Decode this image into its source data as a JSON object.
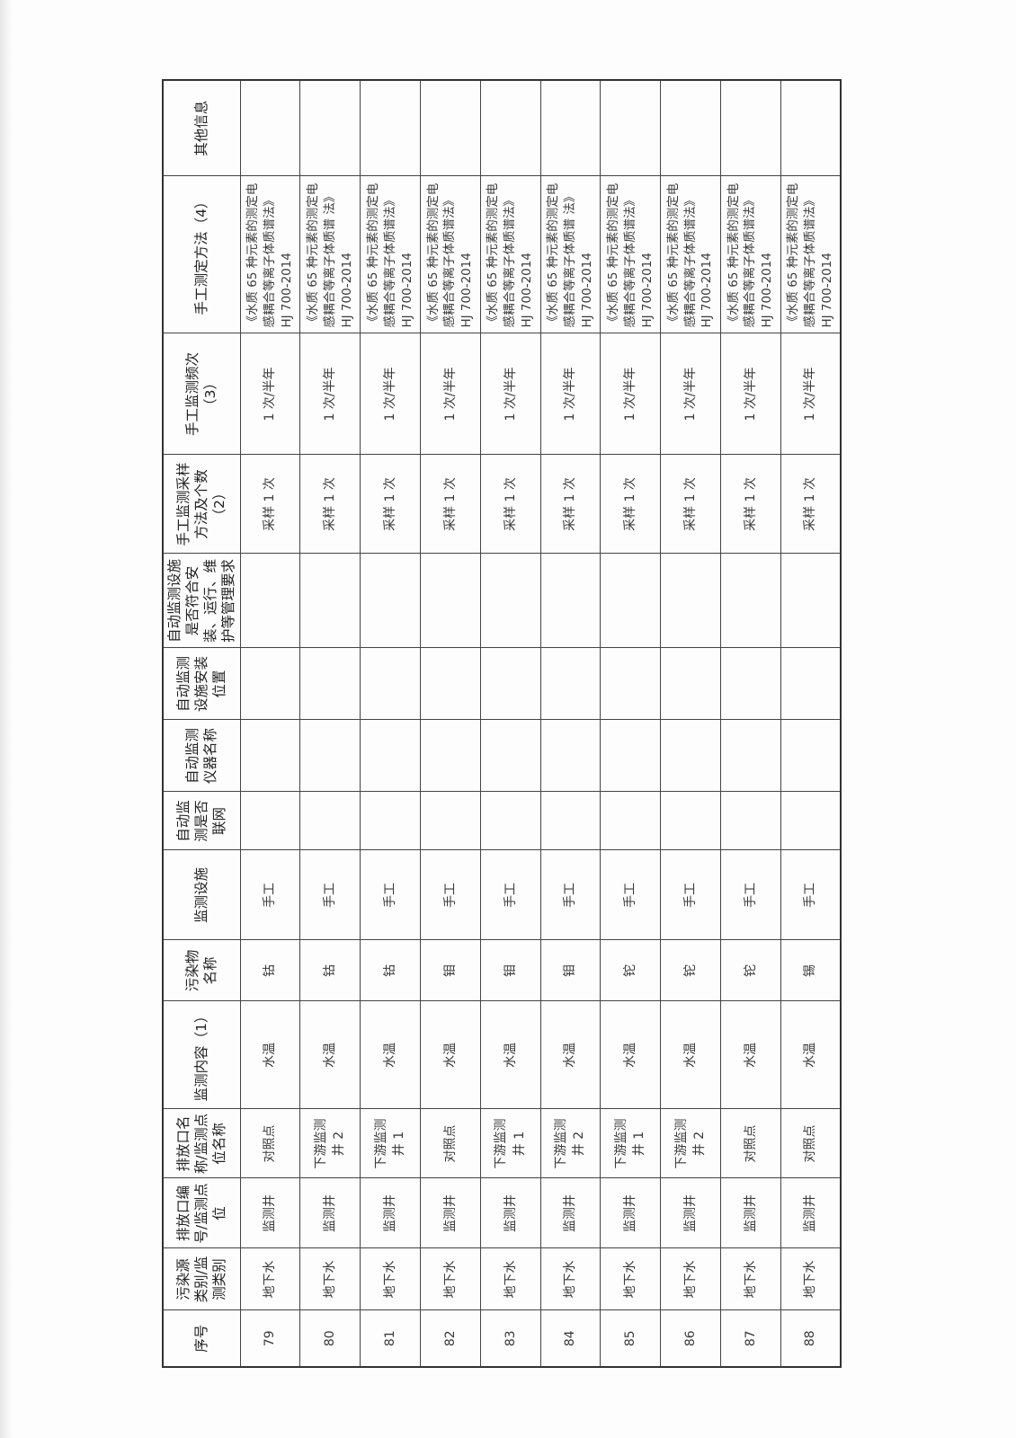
{
  "table": {
    "headers": [
      "序号",
      "污染源类别/监测类别",
      "排放口编号/监测点位",
      "排放口名称/监测点位名称",
      "监测内容（1）",
      "污染物名称",
      "监测设施",
      "自动监测是否联网",
      "自动监测仪器名称",
      "自动监测设施安装位置",
      "自动监测设施是否符合安装、运行、维护等管理要求",
      "手工监测采样方法及个数（2）",
      "手工监测频次（3）",
      "手工测定方法（4）",
      "其他信息"
    ],
    "rows": [
      {
        "no": "79",
        "category": "地下水",
        "point_id": "监测井",
        "point_name": "对照点",
        "content": "水温",
        "pollutant": "钴",
        "facility": "手工",
        "networked": "",
        "instrument": "",
        "install_pos": "",
        "compliant": "",
        "sampling": "采样 1 次",
        "frequency": "1 次/半年",
        "method": "《水质 65 种元素的测定电感耦合等离子体质谱法》HJ 700-2014",
        "other": ""
      },
      {
        "no": "80",
        "category": "地下水",
        "point_id": "监测井",
        "point_name": "下游监测井 2",
        "content": "水温",
        "pollutant": "钴",
        "facility": "手工",
        "networked": "",
        "instrument": "",
        "install_pos": "",
        "compliant": "",
        "sampling": "采样 1 次",
        "frequency": "1 次/半年",
        "method": "《水质 65 种元素的测定电感耦合等离子体质谱 法》HJ 700-2014",
        "other": ""
      },
      {
        "no": "81",
        "category": "地下水",
        "point_id": "监测井",
        "point_name": "下游监测井 1",
        "content": "水温",
        "pollutant": "钴",
        "facility": "手工",
        "networked": "",
        "instrument": "",
        "install_pos": "",
        "compliant": "",
        "sampling": "采样 1 次",
        "frequency": "1 次/半年",
        "method": "《水质 65 种元素的测定电感耦合等离子体质谱法》HJ 700-2014",
        "other": ""
      },
      {
        "no": "82",
        "category": "地下水",
        "point_id": "监测井",
        "point_name": "对照点",
        "content": "水温",
        "pollutant": "钼",
        "facility": "手工",
        "networked": "",
        "instrument": "",
        "install_pos": "",
        "compliant": "",
        "sampling": "采样 1 次",
        "frequency": "1 次/半年",
        "method": "《水质 65 种元素的测定电感耦合等离子体质谱法》HJ 700-2014",
        "other": ""
      },
      {
        "no": "83",
        "category": "地下水",
        "point_id": "监测井",
        "point_name": "下游监测井 1",
        "content": "水温",
        "pollutant": "钼",
        "facility": "手工",
        "networked": "",
        "instrument": "",
        "install_pos": "",
        "compliant": "",
        "sampling": "采样 1 次",
        "frequency": "1 次/半年",
        "method": "《水质 65 种元素的测定电感耦合等离子体质谱法》HJ 700-2014",
        "other": ""
      },
      {
        "no": "84",
        "category": "地下水",
        "point_id": "监测井",
        "point_name": "下游监测井 2",
        "content": "水温",
        "pollutant": "钼",
        "facility": "手工",
        "networked": "",
        "instrument": "",
        "install_pos": "",
        "compliant": "",
        "sampling": "采样 1 次",
        "frequency": "1 次/半年",
        "method": "《水质 65 种元素的测定电感耦合等离子体质谱 法》HJ 700-2014",
        "other": ""
      },
      {
        "no": "85",
        "category": "地下水",
        "point_id": "监测井",
        "point_name": "下游监测井 1",
        "content": "水温",
        "pollutant": "铊",
        "facility": "手工",
        "networked": "",
        "instrument": "",
        "install_pos": "",
        "compliant": "",
        "sampling": "采样 1 次",
        "frequency": "1 次/半年",
        "method": "《水质 65 种元素的测定电感耦合等离子体质谱法》HJ 700-2014",
        "other": ""
      },
      {
        "no": "86",
        "category": "地下水",
        "point_id": "监测井",
        "point_name": "下游监测井 2",
        "content": "水温",
        "pollutant": "铊",
        "facility": "手工",
        "networked": "",
        "instrument": "",
        "install_pos": "",
        "compliant": "",
        "sampling": "采样 1 次",
        "frequency": "1 次/半年",
        "method": "《水质 65 种元素的测定电感耦合等离子体质谱法》HJ 700-2014",
        "other": ""
      },
      {
        "no": "87",
        "category": "地下水",
        "point_id": "监测井",
        "point_name": "对照点",
        "content": "水温",
        "pollutant": "铊",
        "facility": "手工",
        "networked": "",
        "instrument": "",
        "install_pos": "",
        "compliant": "",
        "sampling": "采样 1 次",
        "frequency": "1 次/半年",
        "method": "《水质 65 种元素的测定电感耦合等离子体质谱法》HJ 700-2014",
        "other": ""
      },
      {
        "no": "88",
        "category": "地下水",
        "point_id": "监测井",
        "point_name": "对照点",
        "content": "水温",
        "pollutant": "锡",
        "facility": "手工",
        "networked": "",
        "instrument": "",
        "install_pos": "",
        "compliant": "",
        "sampling": "采样 1 次",
        "frequency": "1 次/半年",
        "method": "《水质 65 种元素的测定电感耦合等离子体质谱法》HJ 700-2014",
        "other": ""
      }
    ]
  }
}
